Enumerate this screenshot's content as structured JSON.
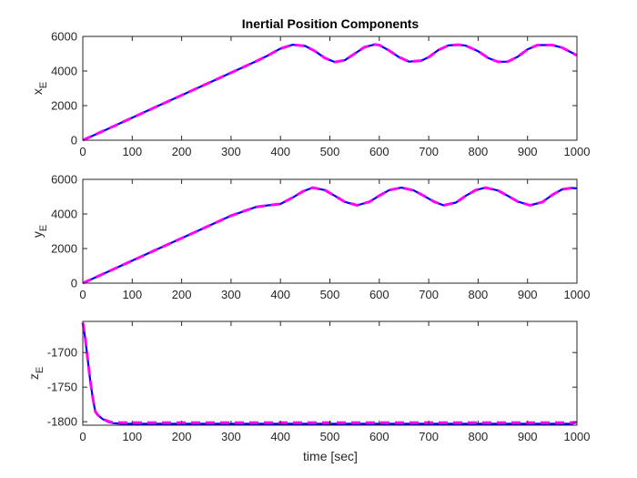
{
  "chart_data": {
    "title": "Inertial Position Components",
    "series_colors": {
      "solid": "#0000ff",
      "dashed": "#ff00ff"
    },
    "charts": [
      {
        "type": "line",
        "ylabel_main": "x",
        "ylabel_sub": "E",
        "xlim": [
          0,
          1000
        ],
        "ylim": [
          0,
          6000
        ],
        "xticks": [
          0,
          100,
          200,
          300,
          400,
          500,
          600,
          700,
          800,
          900,
          1000
        ],
        "yticks": [
          0,
          2000,
          4000,
          6000
        ],
        "x": [
          0,
          50,
          100,
          150,
          200,
          250,
          300,
          350,
          375,
          400,
          425,
          450,
          470,
          490,
          510,
          530,
          550,
          570,
          590,
          600,
          620,
          640,
          660,
          685,
          700,
          720,
          740,
          760,
          775,
          800,
          820,
          840,
          860,
          880,
          900,
          920,
          950,
          970,
          990,
          1000
        ],
        "series": [
          {
            "values": [
              0,
              650,
              1300,
              1950,
              2600,
              3250,
              3900,
              4550,
              4900,
              5300,
              5520,
              5450,
              5150,
              4750,
              4520,
              4620,
              5000,
              5380,
              5530,
              5500,
              5180,
              4800,
              4540,
              4600,
              4800,
              5220,
              5480,
              5520,
              5470,
              5150,
              4760,
              4530,
              4540,
              4820,
              5250,
              5500,
              5500,
              5350,
              5050,
              4900
            ]
          },
          {
            "values": [
              0,
              650,
              1300,
              1950,
              2600,
              3250,
              3900,
              4550,
              4900,
              5300,
              5520,
              5450,
              5150,
              4750,
              4520,
              4620,
              5000,
              5380,
              5530,
              5500,
              5180,
              4800,
              4540,
              4600,
              4800,
              5220,
              5480,
              5520,
              5470,
              5150,
              4760,
              4530,
              4540,
              4820,
              5250,
              5500,
              5500,
              5350,
              5050,
              4900
            ]
          }
        ]
      },
      {
        "type": "line",
        "ylabel_main": "y",
        "ylabel_sub": "E",
        "xlim": [
          0,
          1000
        ],
        "ylim": [
          0,
          6000
        ],
        "xticks": [
          0,
          100,
          200,
          300,
          400,
          500,
          600,
          700,
          800,
          900,
          1000
        ],
        "yticks": [
          0,
          2000,
          4000,
          6000
        ],
        "x": [
          0,
          50,
          100,
          150,
          200,
          250,
          300,
          350,
          375,
          400,
          425,
          445,
          465,
          490,
          510,
          530,
          555,
          580,
          600,
          620,
          645,
          670,
          690,
          710,
          730,
          755,
          775,
          795,
          815,
          840,
          860,
          880,
          905,
          930,
          950,
          970,
          990,
          1000
        ],
        "series": [
          {
            "values": [
              0,
              650,
              1300,
              1950,
              2600,
              3250,
              3900,
              4400,
              4500,
              4580,
              4950,
              5300,
              5520,
              5380,
              5050,
              4700,
              4500,
              4700,
              5060,
              5380,
              5520,
              5360,
              5050,
              4720,
              4500,
              4660,
              5050,
              5380,
              5520,
              5360,
              5050,
              4720,
              4500,
              4690,
              5100,
              5420,
              5500,
              5480
            ]
          },
          {
            "values": [
              0,
              650,
              1300,
              1950,
              2600,
              3250,
              3900,
              4400,
              4500,
              4580,
              4950,
              5300,
              5520,
              5380,
              5050,
              4700,
              4500,
              4700,
              5060,
              5380,
              5520,
              5360,
              5050,
              4720,
              4500,
              4660,
              5050,
              5380,
              5520,
              5360,
              5050,
              4720,
              4500,
              4690,
              5100,
              5420,
              5500,
              5480
            ]
          }
        ]
      },
      {
        "type": "line",
        "ylabel_main": "z",
        "ylabel_sub": "E",
        "xlabel": "time [sec]",
        "xlim": [
          0,
          1000
        ],
        "ylim": [
          -1805,
          -1655
        ],
        "xticks": [
          0,
          100,
          200,
          300,
          400,
          500,
          600,
          700,
          800,
          900,
          1000
        ],
        "yticks": [
          -1800,
          -1750,
          -1700
        ],
        "x": [
          0,
          5,
          10,
          15,
          20,
          25,
          30,
          40,
          50,
          60,
          80,
          100,
          200,
          300,
          400,
          500,
          600,
          700,
          800,
          900,
          990,
          1000
        ],
        "series": [
          {
            "values": [
              -1657,
              -1680,
              -1710,
              -1740,
              -1765,
              -1785,
              -1790,
              -1796,
              -1800,
              -1802,
              -1803,
              -1803,
              -1803,
              -1803,
              -1803,
              -1803,
              -1803,
              -1803,
              -1803,
              -1803,
              -1803,
              -1801
            ]
          },
          {
            "values": [
              -1657,
              -1680,
              -1710,
              -1740,
              -1765,
              -1785,
              -1790,
              -1796,
              -1799,
              -1801,
              -1801.5,
              -1801.5,
              -1801.5,
              -1801.5,
              -1801.5,
              -1801.5,
              -1801.5,
              -1801.5,
              -1801.5,
              -1801.5,
              -1801.5,
              -1801
            ]
          }
        ]
      }
    ]
  }
}
